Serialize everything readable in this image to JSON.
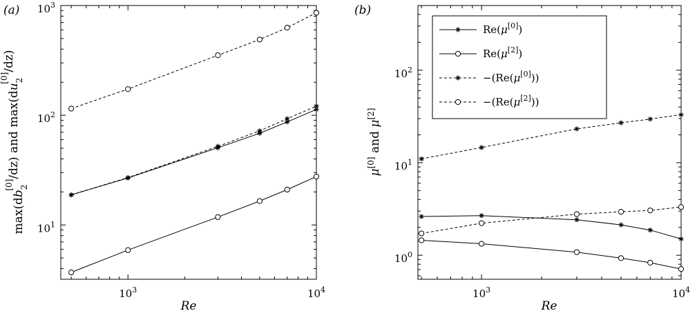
{
  "chart_data": [
    {
      "type": "line",
      "panel_label": "(a)",
      "xscale": "log",
      "yscale": "log",
      "xlim": [
        440,
        10000
      ],
      "ylim": [
        3.2,
        1000
      ],
      "xlabel": "Re",
      "ylabel_prefix": "max(d",
      "ylabel_var1": "b",
      "ylabel_mid": "/dz) and max(d",
      "ylabel_var2": "u",
      "ylabel_end": "/dz)",
      "ylabel_sub": "2",
      "ylabel_sup": "[0]",
      "xticks": [
        {
          "value": 1000,
          "base": "10",
          "exp": "3"
        },
        {
          "value": 10000,
          "base": "10",
          "exp": "4"
        }
      ],
      "yticks": [
        {
          "value": 10,
          "base": "10",
          "exp": "1"
        },
        {
          "value": 100,
          "base": "10",
          "exp": "2"
        },
        {
          "value": 1000,
          "base": "10",
          "exp": "3"
        }
      ],
      "series": [
        {
          "style": "dashed",
          "marker": "circle",
          "x": [
            500,
            1000,
            3000,
            5000,
            7000,
            10000
          ],
          "y": [
            115,
            173,
            352,
            490,
            628,
            860
          ]
        },
        {
          "style": "solid",
          "marker": "star",
          "x": [
            500,
            1000,
            3000,
            5000,
            7000,
            10000
          ],
          "y": [
            18.8,
            26.8,
            50.5,
            68.5,
            87,
            113
          ]
        },
        {
          "style": "dashed",
          "marker": "star",
          "x": [
            500,
            1000,
            3000,
            5000,
            7000,
            10000
          ],
          "y": [
            18.8,
            27,
            52,
            72,
            93,
            121
          ]
        },
        {
          "style": "solid",
          "marker": "circle",
          "x": [
            500,
            1000,
            3000,
            5000,
            7000,
            10000
          ],
          "y": [
            3.7,
            5.9,
            11.8,
            16.5,
            21,
            27.6
          ]
        }
      ]
    },
    {
      "type": "line",
      "panel_label": "(b)",
      "xscale": "log",
      "yscale": "log",
      "xlim": [
        480,
        10000
      ],
      "ylim": [
        0.55,
        500
      ],
      "xlabel": "Re",
      "ylabel_mu1_sup": "[0]",
      "ylabel_and": " and ",
      "ylabel_mu2_sup": "[2]",
      "xticks": [
        {
          "value": 1000,
          "base": "10",
          "exp": "3"
        },
        {
          "value": 10000,
          "base": "10",
          "exp": "4"
        }
      ],
      "yticks": [
        {
          "value": 1,
          "base": "10",
          "exp": "0"
        },
        {
          "value": 10,
          "base": "10",
          "exp": "1"
        },
        {
          "value": 100,
          "base": "10",
          "exp": "2"
        }
      ],
      "legend": {
        "position": "top-left",
        "entries": [
          {
            "style": "solid",
            "marker": "star",
            "prefix": "Re(",
            "sup": "[0]",
            "suffix": ")"
          },
          {
            "style": "solid",
            "marker": "circle",
            "prefix": "Re(",
            "sup": "[2]",
            "suffix": ")"
          },
          {
            "style": "dashed",
            "marker": "star",
            "prefix": "−(Re(",
            "sup": "[0]",
            "suffix": "))"
          },
          {
            "style": "dashed",
            "marker": "circle",
            "prefix": "−(Re(",
            "sup": "[2]",
            "suffix": "))"
          }
        ]
      },
      "series": [
        {
          "style": "solid",
          "marker": "star",
          "x": [
            500,
            1000,
            3000,
            5000,
            7000,
            10000
          ],
          "y": [
            2.62,
            2.68,
            2.42,
            2.13,
            1.87,
            1.5
          ]
        },
        {
          "style": "solid",
          "marker": "circle",
          "x": [
            500,
            1000,
            3000,
            5000,
            7000,
            10000
          ],
          "y": [
            1.45,
            1.33,
            1.08,
            0.93,
            0.83,
            0.71
          ]
        },
        {
          "style": "dashed",
          "marker": "star",
          "x": [
            500,
            1000,
            3000,
            5000,
            7000,
            10000
          ],
          "y": [
            11,
            14.6,
            23.2,
            27,
            29.6,
            33
          ]
        },
        {
          "style": "dashed",
          "marker": "circle",
          "x": [
            500,
            1000,
            3000,
            5000,
            7000,
            10000
          ],
          "y": [
            1.72,
            2.22,
            2.78,
            2.95,
            3.05,
            3.32
          ]
        }
      ]
    }
  ]
}
